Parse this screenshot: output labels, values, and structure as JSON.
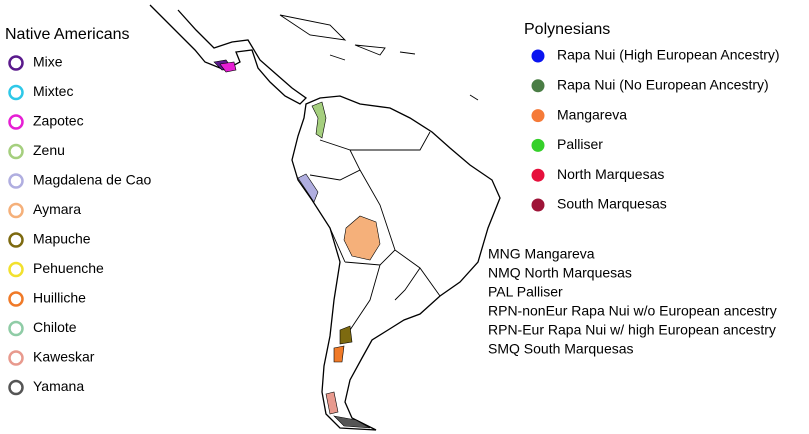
{
  "native_americans": {
    "title": "Native Americans",
    "items": [
      {
        "name": "Mixe",
        "color": "#5a1a8c"
      },
      {
        "name": "Mixtec",
        "color": "#2ec8e8"
      },
      {
        "name": "Zapotec",
        "color": "#e61fd4"
      },
      {
        "name": "Zenu",
        "color": "#a5cf7e"
      },
      {
        "name": "Magdalena de Cao",
        "color": "#b0aee0"
      },
      {
        "name": "Aymara",
        "color": "#f5b07a"
      },
      {
        "name": "Mapuche",
        "color": "#7d6a10"
      },
      {
        "name": "Pehuenche",
        "color": "#f2e12e"
      },
      {
        "name": "Huilliche",
        "color": "#f07a28"
      },
      {
        "name": "Chilote",
        "color": "#8fcca6"
      },
      {
        "name": "Kaweskar",
        "color": "#e89a8e"
      },
      {
        "name": "Yamana",
        "color": "#555555"
      }
    ]
  },
  "polynesians": {
    "title": "Polynesians",
    "items": [
      {
        "name": "Rapa Nui (High European Ancestry)",
        "color": "#0a14f0"
      },
      {
        "name": "Rapa Nui (No European Ancestry)",
        "color": "#4a7d45"
      },
      {
        "name": "Mangareva",
        "color": "#f57a38"
      },
      {
        "name": "Palliser",
        "color": "#35d02a"
      },
      {
        "name": "North Marquesas",
        "color": "#e6103c"
      },
      {
        "name": "South Marquesas",
        "color": "#9e1438"
      }
    ]
  },
  "abbreviations": [
    "MNG Mangareva",
    "NMQ North Marquesas",
    "PAL Palliser",
    "RPN-nonEur Rapa Nui w/o European ancestry",
    "RPN-Eur Rapa Nui w/ high European ancestry",
    "SMQ South Marquesas"
  ]
}
